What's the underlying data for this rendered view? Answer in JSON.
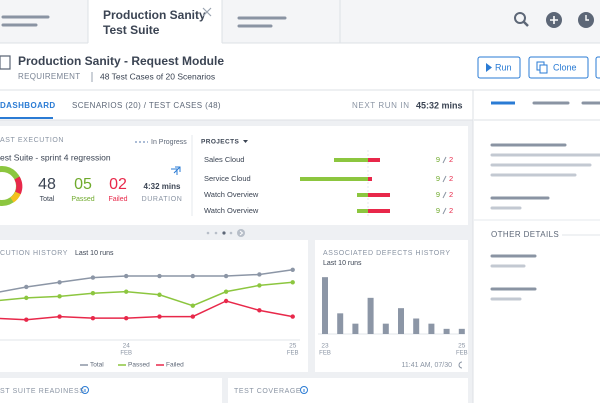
{
  "tab": {
    "title": "Production Sanity",
    "subtitle": "Test Suite"
  },
  "header": {
    "title": "Production Sanity - Request Module",
    "type": "REQUIREMENT",
    "summary": "48 Test Cases of 20 Scenarios",
    "buttons": [
      "Run",
      "Clone"
    ]
  },
  "nav": {
    "tabs": [
      "DASHBOARD",
      "SCENARIOS (20) / TEST CASES (48)"
    ],
    "next_run_label": "NEXT RUN IN",
    "next_run": "45:32 mins"
  },
  "execution": {
    "title": "AST EXECUTION",
    "legend": "In Progress",
    "suite": "est Suite - sprint 4 regression",
    "stats": [
      {
        "value": "48",
        "label": "Total"
      },
      {
        "value": "05",
        "label": "Passed"
      },
      {
        "value": "02",
        "label": "Failed"
      },
      {
        "value": "4:32 mins",
        "label": "DURATION"
      }
    ]
  },
  "projects": {
    "title": "PROJECTS",
    "rows": [
      {
        "name": "Sales Cloud",
        "passed": 9,
        "failed": 2
      },
      {
        "name": "Service Cloud",
        "passed": 9,
        "failed": 2
      },
      {
        "name": "Watch Overview",
        "passed": 9,
        "failed": 2
      },
      {
        "name": "Watch Overview",
        "passed": 9,
        "failed": 2
      }
    ]
  },
  "history": {
    "title": "CUTION HISTORY",
    "subtitle": "Last 10 runs",
    "categories": [
      null,
      null,
      null,
      null,
      "24",
      null,
      null,
      null,
      null,
      "25"
    ],
    "months": [
      null,
      null,
      null,
      null,
      "FEB",
      null,
      null,
      null,
      null,
      "FEB"
    ],
    "ylim": [
      0,
      50
    ],
    "series": [
      {
        "name": "Total",
        "color": "#8c96a6",
        "values": [
          30,
          34,
          37,
          40,
          41,
          41,
          41,
          41,
          42,
          45
        ]
      },
      {
        "name": "Passed",
        "color": "#8cc63f",
        "values": [
          25,
          27,
          28,
          30,
          31,
          29,
          22,
          31,
          35,
          37
        ]
      },
      {
        "name": "Failed",
        "color": "#e8284a",
        "values": [
          14,
          13,
          15,
          14,
          14,
          15,
          15,
          25,
          19,
          15
        ]
      }
    ]
  },
  "defects": {
    "title": "ASSOCIATED DEFECTS HISTORY",
    "subtitle": "Last 10 runs",
    "categories": [
      "23",
      null,
      null,
      null,
      null,
      null,
      null,
      null,
      null,
      "25"
    ],
    "months": [
      "FEB",
      null,
      null,
      null,
      null,
      null,
      null,
      null,
      null,
      "FEB"
    ],
    "values": [
      11,
      4,
      2,
      7,
      2,
      5,
      3,
      2,
      1,
      1
    ],
    "color": "#8c96a6",
    "ylim": [
      0,
      12
    ],
    "timestamp": "11:41 AM, 07/30"
  },
  "right_panel": {
    "section": "OTHER DETAILS"
  },
  "bottom": {
    "cards": [
      "ST SUITE READINESS",
      "TEST COVERAGE"
    ]
  }
}
